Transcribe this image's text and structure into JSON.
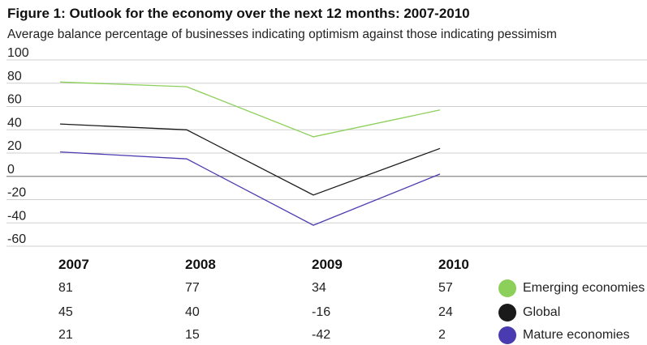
{
  "title": "Figure 1: Outlook for the economy over the next 12 months: 2007-2010",
  "subtitle": "Average balance percentage of businesses indicating optimism against those indicating pessimism",
  "chart_data": {
    "type": "line",
    "title": "Figure 1: Outlook for the economy over the next 12 months: 2007-2010",
    "subtitle": "Average balance percentage of businesses indicating optimism against those indicating pessimism",
    "x": [
      "2007",
      "2008",
      "2009",
      "2010"
    ],
    "ylim": [
      -60,
      100
    ],
    "yticks": [
      100,
      80,
      60,
      40,
      20,
      0,
      -20,
      -40,
      -60
    ],
    "grid": true,
    "legend": "bottom-right",
    "series": [
      {
        "name": "Emerging economies",
        "values": [
          81,
          77,
          34,
          57
        ],
        "color": "#8ccf5a"
      },
      {
        "name": "Global",
        "values": [
          45,
          40,
          -16,
          24
        ],
        "color": "#1a1a1a"
      },
      {
        "name": "Mature economies",
        "values": [
          21,
          15,
          -42,
          2
        ],
        "color": "#4a3bb0"
      }
    ]
  },
  "table": {
    "years": [
      "2007",
      "2008",
      "2009",
      "2010"
    ],
    "rows": [
      [
        "81",
        "77",
        "34",
        "57"
      ],
      [
        "45",
        "40",
        "-16",
        "24"
      ],
      [
        "21",
        "15",
        "-42",
        "2"
      ]
    ],
    "legend": [
      "Emerging economies",
      "Global",
      "Mature economies"
    ]
  }
}
